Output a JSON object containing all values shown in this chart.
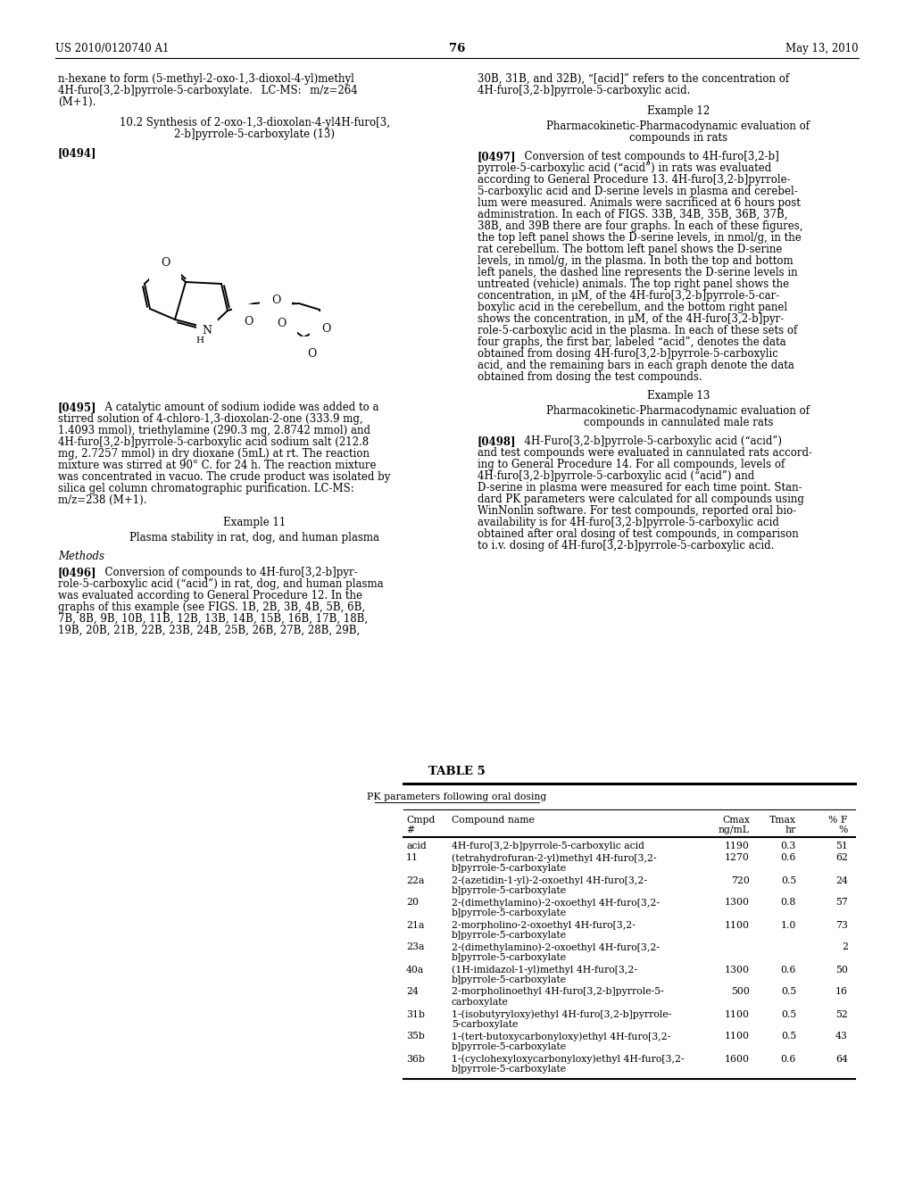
{
  "background_color": "#ffffff",
  "header_left": "US 2010/0120740 A1",
  "header_right": "May 13, 2010",
  "page_number": "76",
  "table": {
    "title": "TABLE 5",
    "subtitle": "PK parameters following oral dosing",
    "rows": [
      [
        "acid",
        "4H-furo[3,2-b]pyrrole-5-carboxylic acid",
        "1190",
        "0.3",
        "51"
      ],
      [
        "11",
        "(tetrahydrofuran-2-yl)methyl 4H-furo[3,2-\nb]pyrrole-5-carboxylate",
        "1270",
        "0.6",
        "62"
      ],
      [
        "22a",
        "2-(azetidin-1-yl)-2-oxoethyl 4H-furo[3,2-\nb]pyrrole-5-carboxylate",
        "720",
        "0.5",
        "24"
      ],
      [
        "20",
        "2-(dimethylamino)-2-oxoethyl 4H-furo[3,2-\nb]pyrrole-5-carboxylate",
        "1300",
        "0.8",
        "57"
      ],
      [
        "21a",
        "2-morpholino-2-oxoethyl 4H-furo[3,2-\nb]pyrrole-5-carboxylate",
        "1100",
        "1.0",
        "73"
      ],
      [
        "23a",
        "2-(dimethylamino)-2-oxoethyl 4H-furo[3,2-\nb]pyrrole-5-carboxylate",
        "",
        "",
        "2"
      ],
      [
        "40a",
        "(1H-imidazol-1-yl)methyl 4H-furo[3,2-\nb]pyrrole-5-carboxylate",
        "1300",
        "0.6",
        "50"
      ],
      [
        "24",
        "2-morpholinoethyl 4H-furo[3,2-b]pyrrole-5-\ncarboxylate",
        "500",
        "0.5",
        "16"
      ],
      [
        "31b",
        "1-(isobutyryloxy)ethyl 4H-furo[3,2-b]pyrrole-\n5-carboxylate",
        "1100",
        "0.5",
        "52"
      ],
      [
        "35b",
        "1-(tert-butoxycarbonyloxy)ethyl 4H-furo[3,2-\nb]pyrrole-5-carboxylate",
        "1100",
        "0.5",
        "43"
      ],
      [
        "36b",
        "1-(cyclohexyloxycarbonyloxy)ethyl 4H-furo[3,2-\nb]pyrrole-5-carboxylate",
        "1600",
        "0.6",
        "64"
      ]
    ]
  }
}
